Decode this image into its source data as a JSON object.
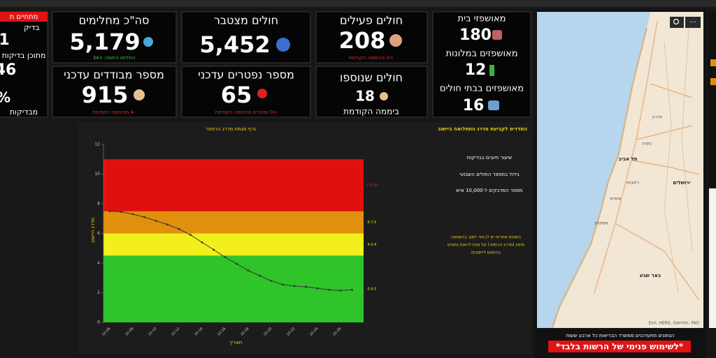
{
  "left_card": {
    "lines": [
      "מתחיים ת",
      "בדיק",
      "1",
      "מתוכן בדיקות",
      "46",
      "%",
      "מבדיקות"
    ]
  },
  "cards": [
    {
      "label": "סה\"כ מחלימים",
      "value": "5,179",
      "sub": "החלימו היממה +34"
    },
    {
      "label": "חולים מצטבר",
      "value": "5,452"
    },
    {
      "label": "חולים פעילים",
      "value": "208",
      "sub": "+0 מהיממה הקודמת"
    },
    {
      "label": "מספר מבודדים עדכני",
      "value": "915",
      "sub": "-4 מהיממה הקודמת"
    },
    {
      "label": "מספר נפטרים עדכני",
      "value": "65",
      "sub": "+0 נפטרים מהיממה הקודמת"
    },
    {
      "label": "חולים שנוספו",
      "value": "18",
      "sub": "ביממה הקודמת"
    }
  ],
  "hospitalization": {
    "rows": [
      {
        "label": "מאושפזי בית",
        "value": "180"
      },
      {
        "label": "מאושפזים במלונות",
        "value": "12"
      },
      {
        "label": "מאושפזים בבתי חולים",
        "value": "16"
      }
    ]
  },
  "chart_data": {
    "type": "line",
    "title": "גרף מגמת מדרג הרמזור",
    "x_label": "תאריך",
    "y_label": "מדרג היישוב",
    "categories": [
      "10-06",
      null,
      "10-08",
      null,
      "10-10",
      null,
      "10-12",
      null,
      "10-14",
      null,
      "10-16",
      null,
      "10-18",
      null,
      "10-20",
      null,
      "10-22",
      null,
      "10-24",
      null,
      "10-26",
      null
    ],
    "series": [
      {
        "name": "מדרג",
        "color": "#333333",
        "values": [
          7.5,
          7.45,
          7.3,
          7.1,
          6.85,
          6.6,
          6.3,
          5.9,
          5.4,
          4.9,
          4.4,
          3.95,
          3.5,
          3.15,
          2.8,
          2.55,
          2.45,
          2.4,
          2.3,
          2.2,
          2.15,
          2.2
        ]
      }
    ],
    "bands": [
      {
        "from": 0,
        "to": 4.5,
        "color": "#2fc42a",
        "label": "0-4.5",
        "label_color": "#f0e000"
      },
      {
        "from": 4.5,
        "to": 6,
        "color": "#f2ef1c",
        "label": "4.5-6",
        "label_color": "#f0e000"
      },
      {
        "from": 6,
        "to": 7.5,
        "color": "#e0900c",
        "label": "6-7.5",
        "label_color": "#f0e000"
      },
      {
        "from": 7.5,
        "to": 11,
        "color": "#e01010",
        "label": "7.5-10",
        "label_color": "#e03030"
      }
    ],
    "ylim": [
      0,
      12
    ],
    "yticks": [
      0,
      2,
      4,
      6,
      8,
      10,
      12
    ]
  },
  "indicators": {
    "title": "המדדים לקביעת מדרג התחלואה ביישוב",
    "items": [
      "שיעור חיובים בבדיקות",
      "גידול במספר החולים השבועי",
      "מספר המדבקים ל-10,000 איש"
    ],
    "note": [
      "בשונות אחרות יש לבחור יישוב בהשוואה",
      "מימין (מדרג הרמזור) על מנת לראות נתונים",
      "בהתאם ליישובים"
    ]
  },
  "map": {
    "places": [
      "חדרה",
      "נתניה",
      "תל אביב",
      "רחובות",
      "אשדוד",
      "ירושלים",
      "אשקלון",
      "באר שבע"
    ],
    "attribution": "Esri, HERE, Garmin, FAO",
    "update_note": "הנתונים מתעדכנים ממשרד הבריאות כל ארבע שעות",
    "disclaimer": "*לשימוש פנימי של הרשות בלבד*"
  }
}
